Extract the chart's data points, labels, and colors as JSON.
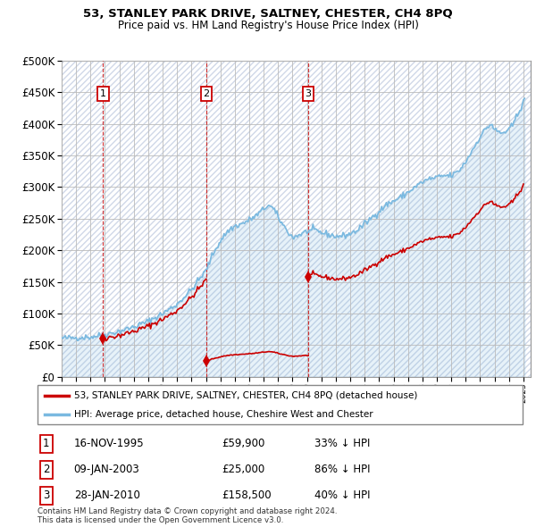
{
  "title": "53, STANLEY PARK DRIVE, SALTNEY, CHESTER, CH4 8PQ",
  "subtitle": "Price paid vs. HM Land Registry's House Price Index (HPI)",
  "legend_line1": "53, STANLEY PARK DRIVE, SALTNEY, CHESTER, CH4 8PQ (detached house)",
  "legend_line2": "HPI: Average price, detached house, Cheshire West and Chester",
  "footer": "Contains HM Land Registry data © Crown copyright and database right 2024.\nThis data is licensed under the Open Government Licence v3.0.",
  "sale_dates_num": [
    1995.878,
    2003.027,
    2010.074
  ],
  "sale_prices": [
    59900,
    25000,
    158500
  ],
  "sale_labels": [
    "1",
    "2",
    "3"
  ],
  "sale_table": [
    [
      "1",
      "16-NOV-1995",
      "£59,900",
      "33% ↓ HPI"
    ],
    [
      "2",
      "09-JAN-2003",
      "£25,000",
      "86% ↓ HPI"
    ],
    [
      "3",
      "28-JAN-2010",
      "£158,500",
      "40% ↓ HPI"
    ]
  ],
  "hpi_color": "#7ab9e0",
  "sale_color": "#cc0000",
  "vline_color": "#cc0000",
  "ylim": [
    0,
    500000
  ],
  "yticks": [
    0,
    50000,
    100000,
    150000,
    200000,
    250000,
    300000,
    350000,
    400000,
    450000,
    500000
  ],
  "xlim_start": 1993.0,
  "xlim_end": 2025.5,
  "background_color": "#ffffff",
  "grid_color": "#bbbbbb",
  "hatch_bg_color": "#e8eef5"
}
